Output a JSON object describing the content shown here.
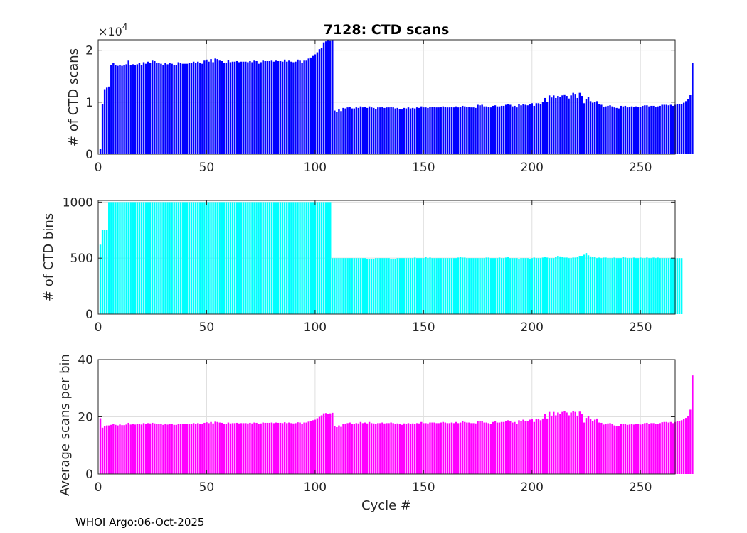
{
  "figure": {
    "footer": "WHOI Argo:06-Oct-2025"
  },
  "chart_data": [
    {
      "type": "bar",
      "title": "7128: CTD scans",
      "xlabel": "",
      "ylabel": "# of CTD scans",
      "exponent_label": "×10",
      "exponent_power": "4",
      "xlim": [
        0,
        266
      ],
      "ylim": [
        0,
        2.2
      ],
      "xticks": [
        "0",
        "50",
        "100",
        "150",
        "200",
        "250"
      ],
      "yticks": [
        "0",
        "1",
        "2"
      ],
      "grid": true,
      "color": "#0000ff",
      "cycle_start": 1,
      "values": [
        0.1,
        0.97,
        1.25,
        1.28,
        1.3,
        1.72,
        1.76,
        1.72,
        1.7,
        1.72,
        1.7,
        1.71,
        1.73,
        1.8,
        1.72,
        1.73,
        1.72,
        1.73,
        1.75,
        1.72,
        1.77,
        1.74,
        1.78,
        1.76,
        1.8,
        1.79,
        1.75,
        1.76,
        1.74,
        1.71,
        1.75,
        1.73,
        1.75,
        1.74,
        1.72,
        1.72,
        1.77,
        1.75,
        1.74,
        1.74,
        1.74,
        1.76,
        1.75,
        1.78,
        1.76,
        1.78,
        1.75,
        1.74,
        1.8,
        1.82,
        1.78,
        1.83,
        1.77,
        1.84,
        1.83,
        1.8,
        1.79,
        1.76,
        1.76,
        1.81,
        1.77,
        1.78,
        1.78,
        1.79,
        1.77,
        1.78,
        1.78,
        1.78,
        1.77,
        1.79,
        1.77,
        1.8,
        1.79,
        1.74,
        1.77,
        1.8,
        1.79,
        1.79,
        1.79,
        1.8,
        1.78,
        1.8,
        1.79,
        1.79,
        1.78,
        1.82,
        1.78,
        1.8,
        1.78,
        1.77,
        1.78,
        1.82,
        1.8,
        1.76,
        1.8,
        1.8,
        1.84,
        1.86,
        1.89,
        1.92,
        1.96,
        2.02,
        2.05,
        2.15,
        2.17,
        2.2,
        2.19,
        2.2,
        0.84,
        0.82,
        0.86,
        0.83,
        0.89,
        0.88,
        0.9,
        0.91,
        0.88,
        0.88,
        0.9,
        0.89,
        0.92,
        0.9,
        0.91,
        0.89,
        0.92,
        0.9,
        0.89,
        0.87,
        0.9,
        0.9,
        0.91,
        0.89,
        0.9,
        0.9,
        0.91,
        0.9,
        0.88,
        0.89,
        0.87,
        0.86,
        0.89,
        0.88,
        0.9,
        0.88,
        0.89,
        0.88,
        0.9,
        0.89,
        0.92,
        0.9,
        0.9,
        0.89,
        0.91,
        0.91,
        0.91,
        0.9,
        0.9,
        0.91,
        0.92,
        0.91,
        0.9,
        0.9,
        0.91,
        0.9,
        0.92,
        0.9,
        0.91,
        0.93,
        0.92,
        0.91,
        0.91,
        0.9,
        0.9,
        0.89,
        0.95,
        0.94,
        0.95,
        0.92,
        0.92,
        0.91,
        0.9,
        0.93,
        0.94,
        0.92,
        0.92,
        0.93,
        0.93,
        0.95,
        0.96,
        0.95,
        0.92,
        0.93,
        0.9,
        0.96,
        0.94,
        0.97,
        0.95,
        0.94,
        0.97,
        0.98,
        0.93,
        0.98,
        0.98,
        0.96,
        1.0,
        1.08,
        1.0,
        1.13,
        1.09,
        1.13,
        1.08,
        1.12,
        1.1,
        1.13,
        1.15,
        1.12,
        1.07,
        1.13,
        1.18,
        1.16,
        1.08,
        1.18,
        1.12,
        0.98,
        1.06,
        1.1,
        1.02,
        0.99,
        1.0,
        1.02,
        0.96,
        0.95,
        0.91,
        0.92,
        0.93,
        0.94,
        0.92,
        0.9,
        0.89,
        0.88,
        0.93,
        0.92,
        0.93,
        0.9,
        0.91,
        0.92,
        0.91,
        0.92,
        0.91,
        0.91,
        0.93,
        0.94,
        0.94,
        0.92,
        0.93,
        0.93,
        0.91,
        0.92,
        0.93,
        0.95,
        0.95,
        0.95,
        0.94,
        0.95,
        0.93,
        0.95,
        0.96,
        0.97,
        0.97,
        0.99,
        1.02,
        1.06,
        1.14,
        1.75
      ]
    },
    {
      "type": "bar",
      "title": "",
      "xlabel": "",
      "ylabel": "# of CTD bins",
      "xlim": [
        0,
        266
      ],
      "ylim": [
        0,
        1015
      ],
      "xticks": [
        "0",
        "50",
        "100",
        "150",
        "200",
        "250"
      ],
      "yticks": [
        "0",
        "500",
        "1000"
      ],
      "grid": true,
      "color": "#00ffff",
      "cycle_start": 1,
      "values": [
        620,
        750,
        750,
        750,
        1000,
        1000,
        1000,
        1000,
        1000,
        1000,
        1000,
        1000,
        1000,
        1000,
        1000,
        1000,
        1000,
        1000,
        1000,
        1000,
        1000,
        1000,
        1000,
        1000,
        1000,
        1000,
        1000,
        1000,
        1000,
        1000,
        1000,
        1000,
        1000,
        1000,
        1000,
        1000,
        1000,
        1000,
        1000,
        1000,
        1000,
        1000,
        1000,
        1000,
        1000,
        1000,
        1000,
        1000,
        1000,
        1000,
        1000,
        1000,
        1000,
        1000,
        1000,
        1000,
        1000,
        1000,
        1000,
        1000,
        1000,
        1000,
        1000,
        1000,
        1000,
        1000,
        1000,
        1000,
        1000,
        1000,
        1000,
        1000,
        1000,
        1000,
        1000,
        1000,
        1000,
        1000,
        1000,
        1000,
        1000,
        1000,
        1000,
        1000,
        1000,
        1000,
        1000,
        1000,
        1000,
        1000,
        1000,
        1000,
        1000,
        1000,
        1000,
        1000,
        1000,
        1000,
        1000,
        1000,
        1000,
        1000,
        1000,
        1000,
        1000,
        1000,
        1000,
        500,
        500,
        500,
        500,
        500,
        500,
        500,
        500,
        500,
        500,
        500,
        500,
        500,
        500,
        500,
        500,
        495,
        495,
        495,
        495,
        500,
        500,
        500,
        500,
        500,
        500,
        500,
        495,
        495,
        495,
        500,
        500,
        500,
        500,
        500,
        500,
        500,
        500,
        505,
        500,
        500,
        500,
        500,
        510,
        500,
        505,
        500,
        500,
        500,
        500,
        500,
        500,
        500,
        500,
        500,
        500,
        500,
        500,
        505,
        510,
        505,
        505,
        500,
        500,
        500,
        500,
        500,
        500,
        500,
        500,
        500,
        505,
        505,
        500,
        500,
        500,
        500,
        505,
        500,
        500,
        505,
        510,
        500,
        500,
        500,
        500,
        495,
        500,
        500,
        500,
        500,
        495,
        500,
        505,
        500,
        500,
        500,
        505,
        510,
        505,
        500,
        500,
        500,
        510,
        520,
        515,
        510,
        505,
        505,
        500,
        500,
        505,
        505,
        510,
        520,
        520,
        530,
        545,
        525,
        515,
        510,
        510,
        500,
        505,
        500,
        505,
        505,
        500,
        500,
        500,
        505,
        500,
        500,
        500,
        510,
        505,
        500,
        500,
        500,
        505,
        500,
        500,
        505,
        500,
        500,
        505,
        500,
        500,
        505,
        500,
        505,
        500,
        500,
        500,
        500,
        500,
        500,
        500,
        500,
        500,
        500,
        500
      ]
    },
    {
      "type": "bar",
      "title": "",
      "xlabel": "Cycle #",
      "ylabel": "Average scans per bin",
      "xlim": [
        0,
        266
      ],
      "ylim": [
        0,
        40
      ],
      "xticks": [
        "0",
        "50",
        "100",
        "150",
        "200",
        "250"
      ],
      "yticks": [
        "0",
        "20",
        "40"
      ],
      "grid": true,
      "color": "#ff00ff",
      "cycle_start": 1,
      "values": [
        19.5,
        16.2,
        16.8,
        17.0,
        17.0,
        17.2,
        17.5,
        17.2,
        17.0,
        17.3,
        17.1,
        17.1,
        17.3,
        17.9,
        17.3,
        17.4,
        17.3,
        17.4,
        17.6,
        17.3,
        17.8,
        17.5,
        17.8,
        17.7,
        17.9,
        17.7,
        17.5,
        17.5,
        17.4,
        17.2,
        17.4,
        17.3,
        17.4,
        17.4,
        17.2,
        17.2,
        17.6,
        17.5,
        17.4,
        17.4,
        17.4,
        17.6,
        17.5,
        17.8,
        17.6,
        17.8,
        17.5,
        17.4,
        17.9,
        18.1,
        17.8,
        18.2,
        17.7,
        18.3,
        18.2,
        18.0,
        17.9,
        17.6,
        17.6,
        18.0,
        17.7,
        17.8,
        17.8,
        17.9,
        17.7,
        17.8,
        17.8,
        17.8,
        17.7,
        17.9,
        17.7,
        18.0,
        17.9,
        17.4,
        17.7,
        18.0,
        17.9,
        17.9,
        17.9,
        18.0,
        17.8,
        18.0,
        17.9,
        17.9,
        17.8,
        18.1,
        17.8,
        18.0,
        17.8,
        17.7,
        17.8,
        18.1,
        18.0,
        17.6,
        18.0,
        18.0,
        18.3,
        18.5,
        18.8,
        19.0,
        19.5,
        20.0,
        20.5,
        21.2,
        21.3,
        21.0,
        21.2,
        21.4,
        16.8,
        16.4,
        17.0,
        16.5,
        17.6,
        17.5,
        17.8,
        18.0,
        17.5,
        17.5,
        17.8,
        17.7,
        18.2,
        17.8,
        18.0,
        17.7,
        18.2,
        17.8,
        17.7,
        17.4,
        17.8,
        17.8,
        18.0,
        17.7,
        17.8,
        17.8,
        18.0,
        17.8,
        17.5,
        17.7,
        17.4,
        17.2,
        17.7,
        17.5,
        17.8,
        17.5,
        17.7,
        17.5,
        17.8,
        17.7,
        18.2,
        17.8,
        17.8,
        17.7,
        18.0,
        18.0,
        18.0,
        17.8,
        17.8,
        18.0,
        18.2,
        18.0,
        17.8,
        17.8,
        18.0,
        17.8,
        18.2,
        17.8,
        18.0,
        18.4,
        18.2,
        18.0,
        18.0,
        17.8,
        17.8,
        17.7,
        18.6,
        18.4,
        18.6,
        18.0,
        18.0,
        17.8,
        17.6,
        18.2,
        18.4,
        18.0,
        18.0,
        18.2,
        18.2,
        18.6,
        18.8,
        18.6,
        18.0,
        18.2,
        17.6,
        18.8,
        18.4,
        19.0,
        18.6,
        18.4,
        19.0,
        19.2,
        18.2,
        19.2,
        19.2,
        18.8,
        19.4,
        21.0,
        19.4,
        21.7,
        20.4,
        21.7,
        20.5,
        21.5,
        21.0,
        21.7,
        22.0,
        21.5,
        20.5,
        21.5,
        22.0,
        21.7,
        20.4,
        21.8,
        21.0,
        18.0,
        19.6,
        20.2,
        19.2,
        18.6,
        19.0,
        19.4,
        18.0,
        17.9,
        17.3,
        17.5,
        17.7,
        17.8,
        17.5,
        17.0,
        16.8,
        16.8,
        17.6,
        17.5,
        17.6,
        17.2,
        17.3,
        17.5,
        17.3,
        17.4,
        17.4,
        17.3,
        17.6,
        17.8,
        17.9,
        17.6,
        17.8,
        17.8,
        17.5,
        17.6,
        17.8,
        18.1,
        18.2,
        18.2,
        18.0,
        18.2,
        17.8,
        18.2,
        18.5,
        18.6,
        18.8,
        19.2,
        19.6,
        20.2,
        22.5,
        34.5
      ]
    }
  ]
}
